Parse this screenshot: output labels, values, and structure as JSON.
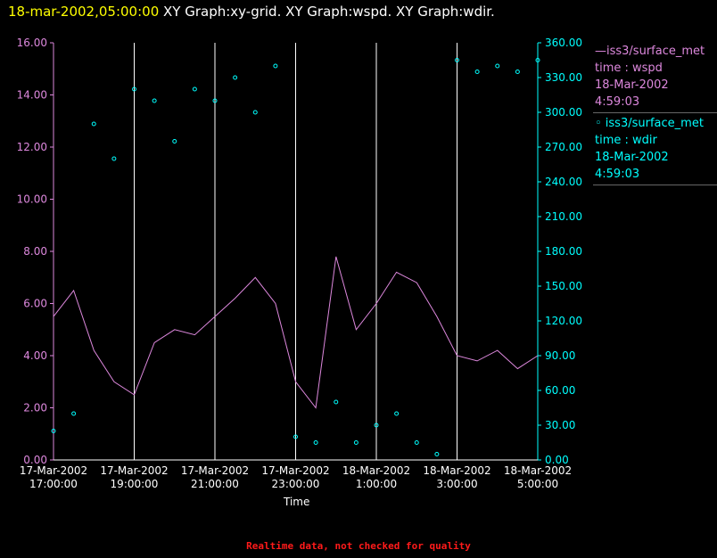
{
  "header": {
    "timestamp": "18-mar-2002,05:00:00",
    "titles": "XY Graph:xy-grid.  XY Graph:wspd.  XY Graph:wdir."
  },
  "legend": {
    "wspd": {
      "line1": "—iss3/surface_met",
      "line2": "time : wspd",
      "line3": "18-Mar-2002",
      "line4": "4:59:03"
    },
    "wdir": {
      "line1": "◦ iss3/surface_met",
      "line2": "time : wdir",
      "line3": "18-Mar-2002",
      "line4": "4:59:03"
    }
  },
  "footer": "Realtime data, not checked for quality",
  "colors": {
    "wspd": "#dd88dd",
    "wdir": "#00ffff",
    "grid": "#ffffff",
    "header_ts": "#ffff00",
    "footer": "#ff1a1a"
  },
  "chart_data": {
    "type": "line",
    "xlabel": "Time",
    "x_ticks": [
      [
        "17-Mar-2002",
        "17:00:00"
      ],
      [
        "17-Mar-2002",
        "19:00:00"
      ],
      [
        "17-Mar-2002",
        "21:00:00"
      ],
      [
        "17-Mar-2002",
        "23:00:00"
      ],
      [
        "18-Mar-2002",
        "1:00:00"
      ],
      [
        "18-Mar-2002",
        "3:00:00"
      ],
      [
        "18-Mar-2002",
        "5:00:00"
      ]
    ],
    "xlim_hours": [
      0,
      12
    ],
    "y_left": {
      "ylim": [
        0,
        16
      ],
      "ticks": [
        "0.00",
        "2.00",
        "4.00",
        "6.00",
        "8.00",
        "10.00",
        "12.00",
        "14.00",
        "16.00"
      ],
      "color": "#dd88dd"
    },
    "y_right": {
      "ylim": [
        0,
        360
      ],
      "ticks": [
        "0.00",
        "30.00",
        "60.00",
        "90.00",
        "120.00",
        "150.00",
        "180.00",
        "210.00",
        "240.00",
        "270.00",
        "300.00",
        "330.00",
        "360.00"
      ],
      "color": "#00ffff"
    },
    "series": [
      {
        "name": "iss3/surface_met time : wspd",
        "axis": "left",
        "style": "line",
        "x": [
          0,
          0.5,
          1,
          1.5,
          2,
          2.5,
          3,
          3.5,
          4,
          4.5,
          5,
          5.5,
          6,
          6.5,
          7,
          7.5,
          8,
          8.5,
          9,
          9.5,
          10,
          10.5,
          11,
          11.5,
          12
        ],
        "y": [
          5.5,
          6.5,
          4.2,
          3.0,
          2.5,
          4.5,
          5.0,
          4.8,
          5.5,
          6.2,
          7.0,
          6.0,
          3.0,
          2.0,
          7.8,
          5.0,
          6.0,
          7.2,
          6.8,
          5.5,
          4.0,
          3.8,
          4.2,
          3.5,
          4.0
        ]
      },
      {
        "name": "iss3/surface_met time : wdir",
        "axis": "right",
        "style": "points",
        "x": [
          0,
          0.5,
          1,
          1.5,
          2,
          2.5,
          3,
          3.5,
          4,
          4.5,
          5,
          5.5,
          6,
          6.5,
          7,
          7.5,
          8,
          8.5,
          9,
          9.5,
          10,
          10.5,
          11,
          11.5,
          12
        ],
        "y": [
          25,
          40,
          290,
          260,
          320,
          310,
          275,
          320,
          310,
          330,
          300,
          340,
          20,
          15,
          50,
          15,
          30,
          40,
          15,
          5,
          345,
          335,
          340,
          335,
          345
        ]
      }
    ]
  }
}
